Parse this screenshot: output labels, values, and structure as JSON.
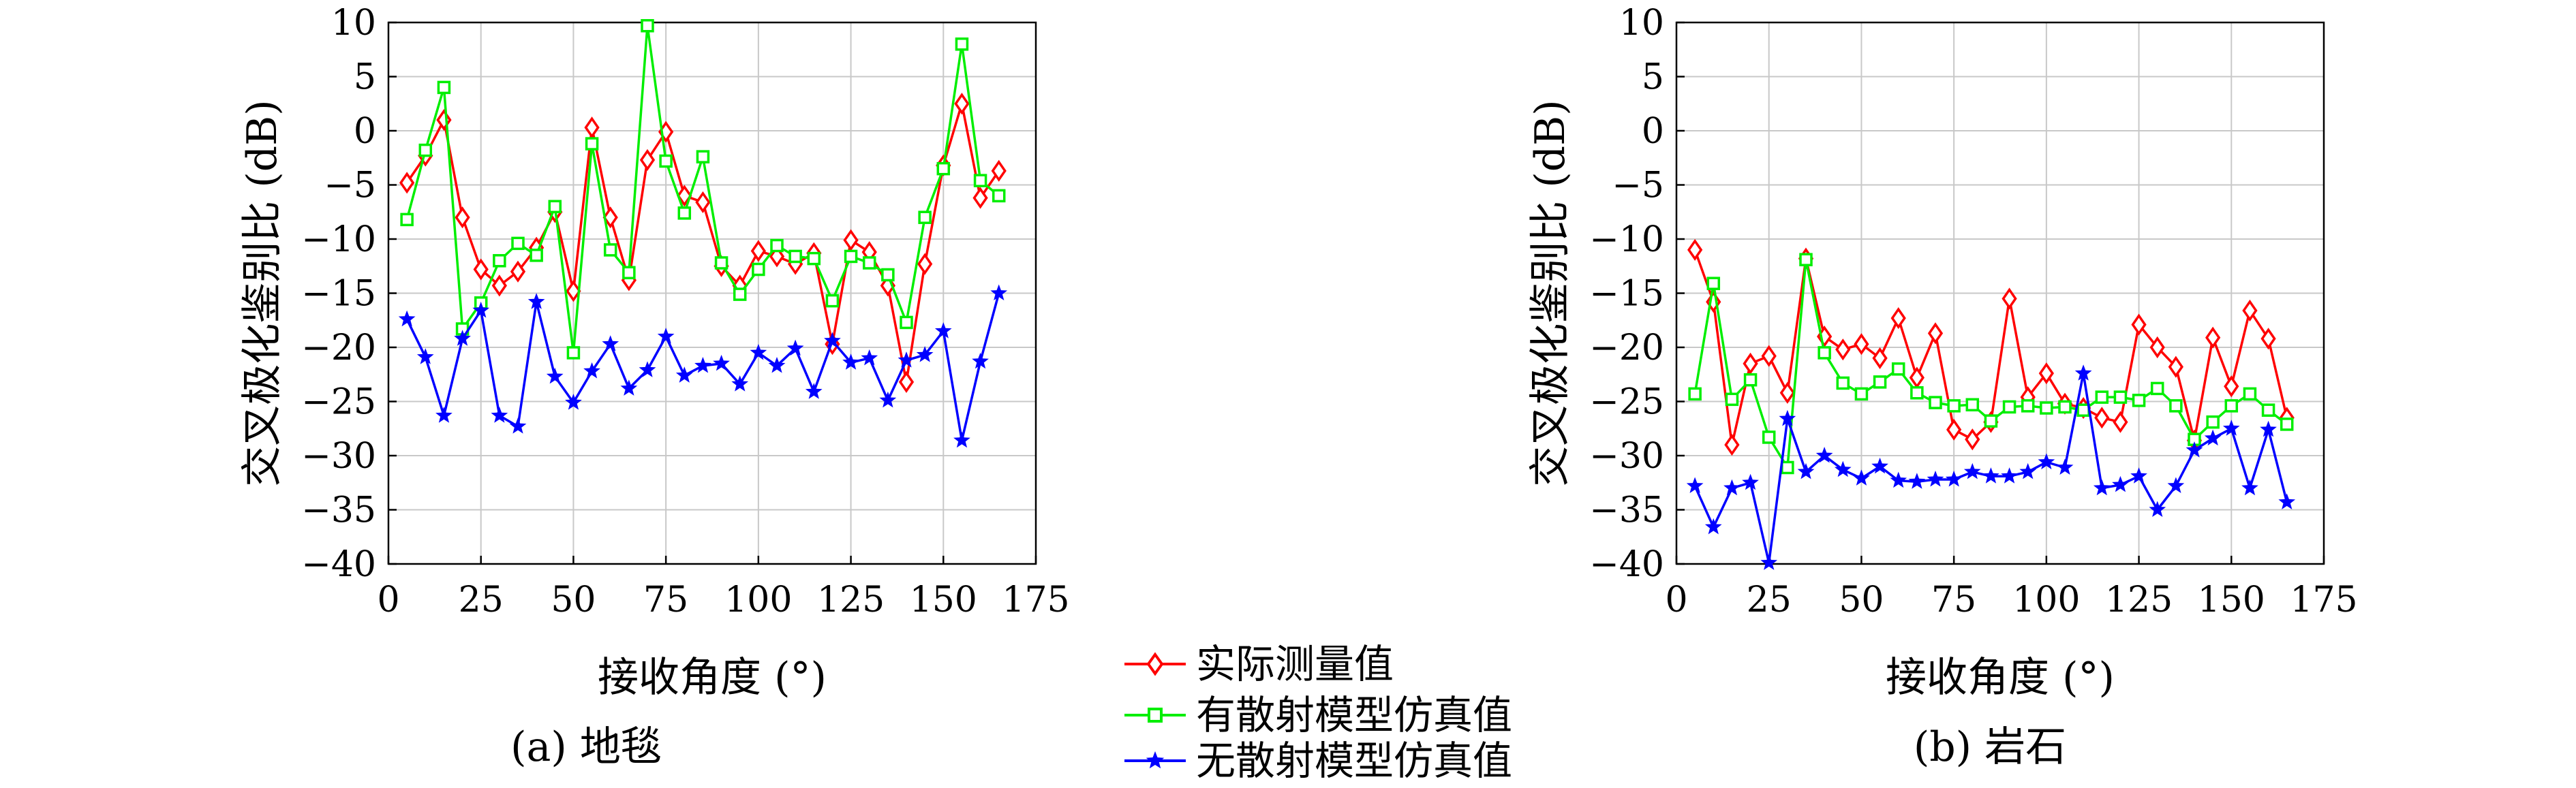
{
  "legend": [
    {
      "label": "实际测量值",
      "color": "#ff0000",
      "marker": "diamond"
    },
    {
      "label": "有散射模型仿真值",
      "color": "#00ee00",
      "marker": "square"
    },
    {
      "label": "无散射模型仿真值",
      "color": "#0000ff",
      "marker": "star"
    }
  ],
  "chart_data": [
    {
      "type": "line",
      "caption": "(a) 地毯",
      "xlabel": "接收角度 (°)",
      "ylabel": "交叉极化鉴别比 (dB)",
      "xlim": [
        0,
        175
      ],
      "ylim": [
        -40,
        10
      ],
      "xticks": [
        0,
        25,
        50,
        75,
        100,
        125,
        150,
        175
      ],
      "yticks": [
        10,
        5,
        0,
        -5,
        -10,
        -15,
        -20,
        -25,
        -30,
        -35,
        -40
      ],
      "grid": true,
      "x": [
        5,
        10,
        15,
        20,
        25,
        30,
        35,
        40,
        45,
        50,
        55,
        60,
        65,
        70,
        75,
        80,
        85,
        90,
        95,
        100,
        105,
        110,
        115,
        120,
        125,
        130,
        135,
        140,
        145,
        150,
        155,
        160,
        165
      ],
      "series": [
        {
          "name": "实际测量值",
          "color": "#ff0000",
          "marker": "diamond",
          "values": [
            -4.8,
            -2.3,
            1.0,
            -8.0,
            -12.8,
            -14.3,
            -13.0,
            -10.8,
            -7.5,
            -14.8,
            0.3,
            -8.0,
            -13.8,
            -2.7,
            -0.1,
            -6.0,
            -6.6,
            -12.5,
            -14.3,
            -11.1,
            -11.6,
            -12.3,
            -11.3,
            -19.7,
            -10.1,
            -11.2,
            -14.3,
            -23.2,
            -12.3,
            -3.2,
            2.5,
            -6.2,
            -3.7
          ]
        },
        {
          "name": "有散射模型仿真值",
          "color": "#00ee00",
          "marker": "square",
          "values": [
            -8.2,
            -1.8,
            4.0,
            -18.3,
            -15.9,
            -12.0,
            -10.4,
            -11.5,
            -7.0,
            -20.5,
            -1.2,
            -11.0,
            -13.1,
            9.7,
            -2.8,
            -7.6,
            -2.4,
            -12.2,
            -15.1,
            -12.8,
            -10.6,
            -11.6,
            -11.8,
            -15.7,
            -11.6,
            -12.2,
            -13.3,
            -17.7,
            -8.0,
            -3.5,
            8.0,
            -4.6,
            -6.0
          ]
        },
        {
          "name": "无散射模型仿真值",
          "color": "#0000ff",
          "marker": "star",
          "values": [
            -17.4,
            -20.9,
            -26.3,
            -19.2,
            -16.6,
            -26.3,
            -27.3,
            -15.8,
            -22.7,
            -25.1,
            -22.2,
            -19.7,
            -23.8,
            -22.1,
            -19.0,
            -22.6,
            -21.7,
            -21.5,
            -23.4,
            -20.5,
            -21.7,
            -20.1,
            -24.1,
            -19.4,
            -21.4,
            -21.0,
            -24.9,
            -21.2,
            -20.7,
            -18.5,
            -28.6,
            -21.3,
            -15.0
          ]
        }
      ]
    },
    {
      "type": "line",
      "caption": "(b) 岩石",
      "xlabel": "接收角度 (°)",
      "ylabel": "交叉极化鉴别比 (dB)",
      "xlim": [
        0,
        175
      ],
      "ylim": [
        -40,
        10
      ],
      "xticks": [
        0,
        25,
        50,
        75,
        100,
        125,
        150,
        175
      ],
      "yticks": [
        10,
        5,
        0,
        -5,
        -10,
        -15,
        -20,
        -25,
        -30,
        -35,
        -40
      ],
      "grid": true,
      "x": [
        5,
        10,
        15,
        20,
        25,
        30,
        35,
        40,
        45,
        50,
        55,
        60,
        65,
        70,
        75,
        80,
        85,
        90,
        95,
        100,
        105,
        110,
        115,
        120,
        125,
        130,
        135,
        140,
        145,
        150,
        155,
        160,
        165
      ],
      "series": [
        {
          "name": "实际测量值",
          "color": "#ff0000",
          "marker": "diamond",
          "values": [
            -11.0,
            -15.8,
            -29.0,
            -21.5,
            -20.8,
            -24.2,
            -11.8,
            -19.0,
            -20.2,
            -19.7,
            -21.0,
            -17.3,
            -22.8,
            -18.7,
            -27.6,
            -28.5,
            -26.9,
            -15.5,
            -24.6,
            -22.4,
            -25.2,
            -25.6,
            -26.5,
            -26.9,
            -17.9,
            -20.0,
            -21.8,
            -28.6,
            -19.1,
            -23.6,
            -16.6,
            -19.2,
            -26.5
          ]
        },
        {
          "name": "有散射模型仿真值",
          "color": "#00ee00",
          "marker": "square",
          "values": [
            -24.3,
            -14.1,
            -24.8,
            -23.0,
            -28.3,
            -31.1,
            -11.9,
            -20.5,
            -23.3,
            -24.3,
            -23.2,
            -22.0,
            -24.2,
            -25.1,
            -25.4,
            -25.3,
            -26.8,
            -25.5,
            -25.4,
            -25.6,
            -25.5,
            -25.8,
            -24.6,
            -24.6,
            -24.9,
            -23.8,
            -25.4,
            -28.5,
            -26.9,
            -25.4,
            -24.3,
            -25.8,
            -27.1
          ]
        },
        {
          "name": "无散射模型仿真值",
          "color": "#0000ff",
          "marker": "star",
          "values": [
            -32.8,
            -36.6,
            -33.0,
            -32.5,
            -39.9,
            -26.6,
            -31.5,
            -30.0,
            -31.3,
            -32.1,
            -31.0,
            -32.3,
            -32.4,
            -32.2,
            -32.2,
            -31.5,
            -31.9,
            -31.9,
            -31.5,
            -30.6,
            -31.1,
            -22.4,
            -33.0,
            -32.7,
            -31.9,
            -35.0,
            -32.8,
            -29.5,
            -28.4,
            -27.5,
            -33.0,
            -27.6,
            -34.3
          ]
        }
      ]
    }
  ]
}
